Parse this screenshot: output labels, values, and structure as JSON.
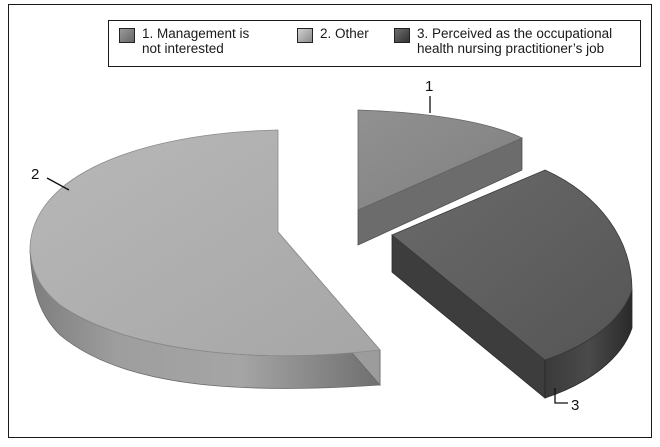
{
  "chart_data": {
    "type": "pie",
    "style": "3d-exploded",
    "slices": [
      {
        "label": "1",
        "name_lines": [
          "1. Management is",
          "not interested"
        ],
        "value": 12,
        "color": "#8a8a8a"
      },
      {
        "label": "2",
        "name_lines": [
          "2. Other"
        ],
        "value": 58,
        "color": "#b3b3b3"
      },
      {
        "label": "3",
        "name_lines": [
          "3. Perceived as the occupational",
          "health nursing practitioner’s job"
        ],
        "value": 30,
        "color": "#5e5e5e"
      }
    ],
    "legend_position": "top"
  }
}
